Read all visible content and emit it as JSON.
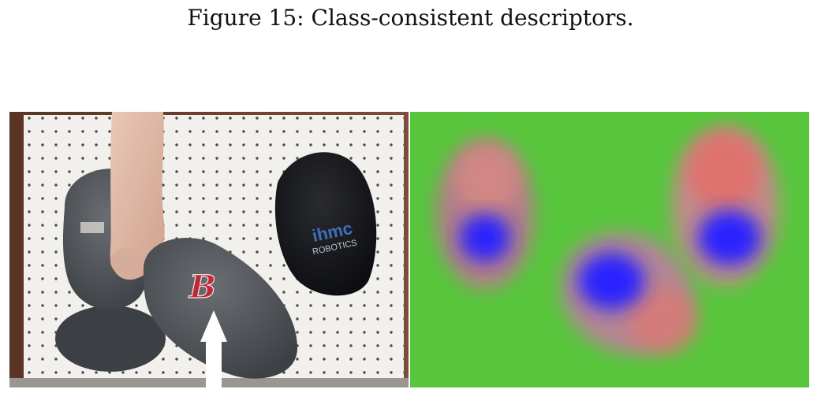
{
  "caption": "Figure 15: Class-consistent descriptors.",
  "panels": {
    "left": {
      "cap_logo_1": "B",
      "cap_logo_2": "ihmc",
      "cap_logo_2_sub": "ROBOTICS"
    },
    "right": {}
  },
  "colors": {
    "pegboard": "#f2f0ec",
    "peg_hole": "#2e2c2a",
    "cap_gray": "#55595d",
    "cap_black": "#151619",
    "logo_red": "#c0283a",
    "logo_blue": "#3f6fb8",
    "background_green": "#57c63c",
    "descriptor_blue": "#2b21ff",
    "descriptor_red": "#e26f6a"
  }
}
